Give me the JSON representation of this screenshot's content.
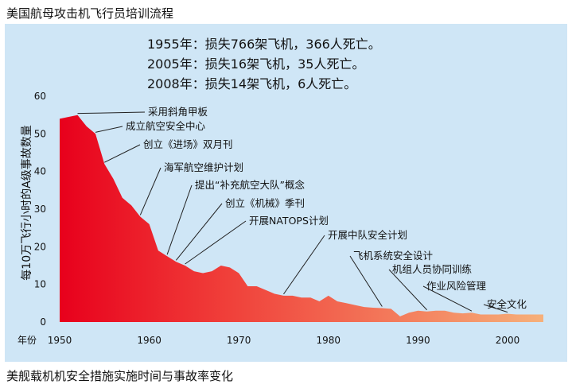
{
  "header_title": "美国航母攻击机飞行员培训流程",
  "footer_title": "美舰载机机安全措施实施时间与事故率变化",
  "stats": [
    "1955年：损失766架飞机，366人死亡。",
    "2005年：损失16架飞机，35人死亡。",
    "2008年：损失14架飞机，6人死亡。"
  ],
  "colors": {
    "panel_bg": "#cfe6f6",
    "area_start": "#e8001c",
    "area_mid": "#f0403a",
    "area_end": "#f6b07a"
  },
  "chart_data": {
    "type": "area",
    "ylabel": "每10万飞行小时的A级事故数量",
    "xlabel": "年份",
    "xlim": [
      1950,
      2004
    ],
    "ylim": [
      0,
      60
    ],
    "xticks": [
      1950,
      1960,
      1970,
      1980,
      1990,
      2000
    ],
    "yticks": [
      0,
      10,
      20,
      30,
      40,
      50,
      60
    ],
    "x": [
      1950,
      1951,
      1952,
      1953,
      1954,
      1955,
      1956,
      1957,
      1958,
      1959,
      1960,
      1961,
      1962,
      1963,
      1964,
      1965,
      1966,
      1967,
      1968,
      1969,
      1970,
      1971,
      1972,
      1973,
      1974,
      1975,
      1976,
      1977,
      1978,
      1979,
      1980,
      1981,
      1982,
      1983,
      1984,
      1985,
      1986,
      1987,
      1988,
      1989,
      1990,
      1991,
      1992,
      1993,
      1994,
      1995,
      1996,
      1997,
      1998,
      1999,
      2000,
      2001,
      2002,
      2003,
      2004
    ],
    "y": [
      54,
      54.5,
      55,
      52,
      50,
      42,
      38,
      33,
      31,
      28,
      26,
      19,
      17.5,
      16,
      15,
      13.5,
      13,
      13.5,
      15,
      14.5,
      13,
      9.5,
      9.5,
      8.5,
      7.5,
      7,
      7,
      6.5,
      6.5,
      5.5,
      7,
      5.5,
      5,
      4.5,
      4,
      3.8,
      3.7,
      3.5,
      1.5,
      2.5,
      3,
      2.8,
      3,
      3,
      2.5,
      2.3,
      2.5,
      2,
      2,
      2,
      2.2,
      2,
      2,
      2,
      2
    ],
    "annotations": [
      {
        "text": "采用斜角甲板",
        "year": 1952
      },
      {
        "text": "成立航空安全中心",
        "year": 1954
      },
      {
        "text": "创立《进场》双月刊",
        "year": 1955
      },
      {
        "text": "海军航空维护计划",
        "year": 1959
      },
      {
        "text": "提出“补充航空大队”概念",
        "year": 1962
      },
      {
        "text": "创立《机械》季刊",
        "year": 1963
      },
      {
        "text": "开展NATOPS计划",
        "year": 1964
      },
      {
        "text": "开展中队安全计划",
        "year": 1975
      },
      {
        "text": "飞机系统安全设计",
        "year": 1986
      },
      {
        "text": "机组人员协同训练",
        "year": 1991
      },
      {
        "text": "作业风险管理",
        "year": 1996
      },
      {
        "text": "安全文化",
        "year": 2000
      }
    ]
  }
}
